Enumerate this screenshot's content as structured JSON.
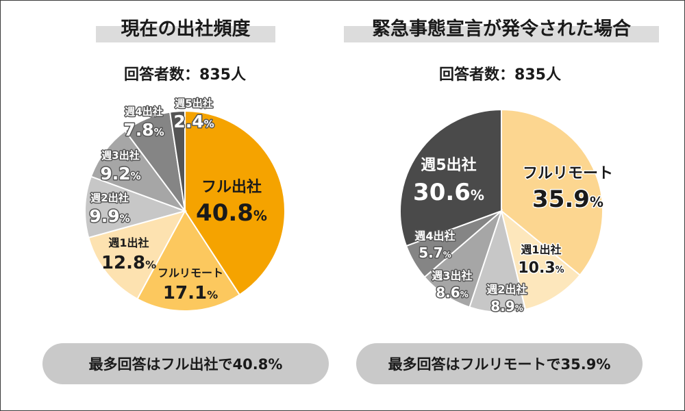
{
  "chart_data": [
    {
      "type": "pie",
      "title": "現在の出社頻度",
      "respondents": "回答者数：835人",
      "summary": "最多回答はフル出社で40.8%",
      "slices": [
        {
          "label": "フル出社",
          "value": 40.8,
          "display": "40.8",
          "color": "#f5a300"
        },
        {
          "label": "フルリモート",
          "value": 17.1,
          "display": "17.1",
          "color": "#fcc85e"
        },
        {
          "label": "週1出社",
          "value": 12.8,
          "display": "12.8",
          "color": "#fde2b0"
        },
        {
          "label": "週2出社",
          "value": 9.9,
          "display": "9.9",
          "color": "#c7c7c7"
        },
        {
          "label": "週3出社",
          "value": 9.2,
          "display": "9.2",
          "color": "#a6a6a6"
        },
        {
          "label": "週4出社",
          "value": 7.8,
          "display": "7.8",
          "color": "#858585"
        },
        {
          "label": "週5出社",
          "value": 2.4,
          "display": "2.4",
          "color": "#555555"
        }
      ],
      "percent_sign": "%"
    },
    {
      "type": "pie",
      "title": "緊急事態宣言が発令された場合",
      "respondents": "回答者数：835人",
      "summary": "最多回答はフルリモートで35.9%",
      "slices": [
        {
          "label": "フルリモート",
          "value": 35.9,
          "display": "35.9",
          "color": "#fcd690"
        },
        {
          "label": "週1出社",
          "value": 10.3,
          "display": "10.3",
          "color": "#fde7bc"
        },
        {
          "label": "週2出社",
          "value": 8.9,
          "display": "8.9",
          "color": "#c7c7c7"
        },
        {
          "label": "週3出社",
          "value": 8.6,
          "display": "8.6",
          "color": "#a6a6a6"
        },
        {
          "label": "週4出社",
          "value": 5.7,
          "display": "5.7",
          "color": "#858585"
        },
        {
          "label": "週5出社",
          "value": 30.6,
          "display": "30.6",
          "color": "#4a4a4a"
        }
      ],
      "percent_sign": "%"
    }
  ]
}
